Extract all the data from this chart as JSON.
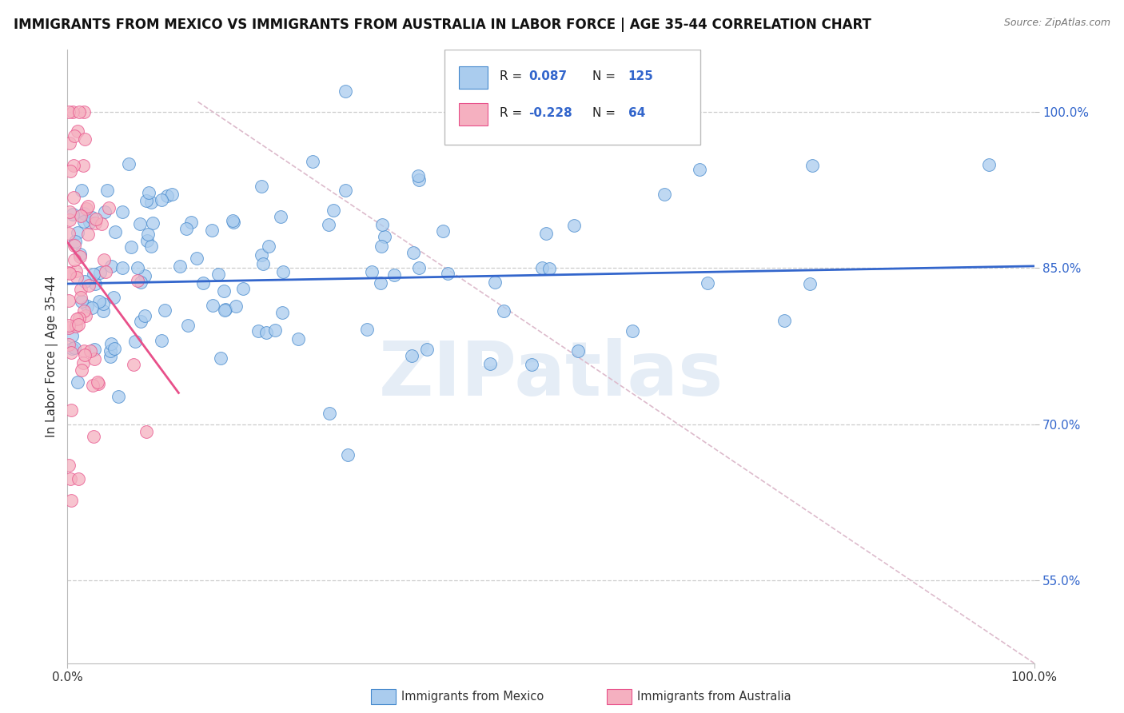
{
  "title": "IMMIGRANTS FROM MEXICO VS IMMIGRANTS FROM AUSTRALIA IN LABOR FORCE | AGE 35-44 CORRELATION CHART",
  "source": "Source: ZipAtlas.com",
  "ylabel": "In Labor Force | Age 35-44",
  "xlim": [
    0.0,
    1.0
  ],
  "ylim": [
    0.47,
    1.06
  ],
  "ytick_vals": [
    0.55,
    0.7,
    0.85,
    1.0
  ],
  "ytick_labels": [
    "55.0%",
    "70.0%",
    "85.0%",
    "100.0%"
  ],
  "xtick_vals": [
    0.0,
    1.0
  ],
  "xtick_labels": [
    "0.0%",
    "100.0%"
  ],
  "blue_line_color": "#3366cc",
  "pink_line_color": "#e8508a",
  "blue_scatter_color": "#aaccee",
  "pink_scatter_color": "#f5b0c0",
  "blue_scatter_edge": "#4488cc",
  "pink_scatter_edge": "#e8508a",
  "watermark": "ZIPatlas",
  "background_color": "#ffffff",
  "grid_color": "#cccccc",
  "title_fontsize": 12,
  "tick_color_y": "#3366cc",
  "tick_color_x": "#333333",
  "ref_line_color": "#ddbbcc",
  "legend_box_color": "#eeeeee",
  "r_blue": "0.087",
  "n_blue": "125",
  "r_pink": "-0.228",
  "n_pink": "64",
  "blue_line_x": [
    0.0,
    1.0
  ],
  "blue_line_y": [
    0.835,
    0.852
  ],
  "pink_line_x": [
    0.0,
    0.115
  ],
  "pink_line_y": [
    0.875,
    0.73
  ],
  "ref_line_x": [
    0.135,
    1.0
  ],
  "ref_line_y": [
    1.01,
    0.47
  ]
}
